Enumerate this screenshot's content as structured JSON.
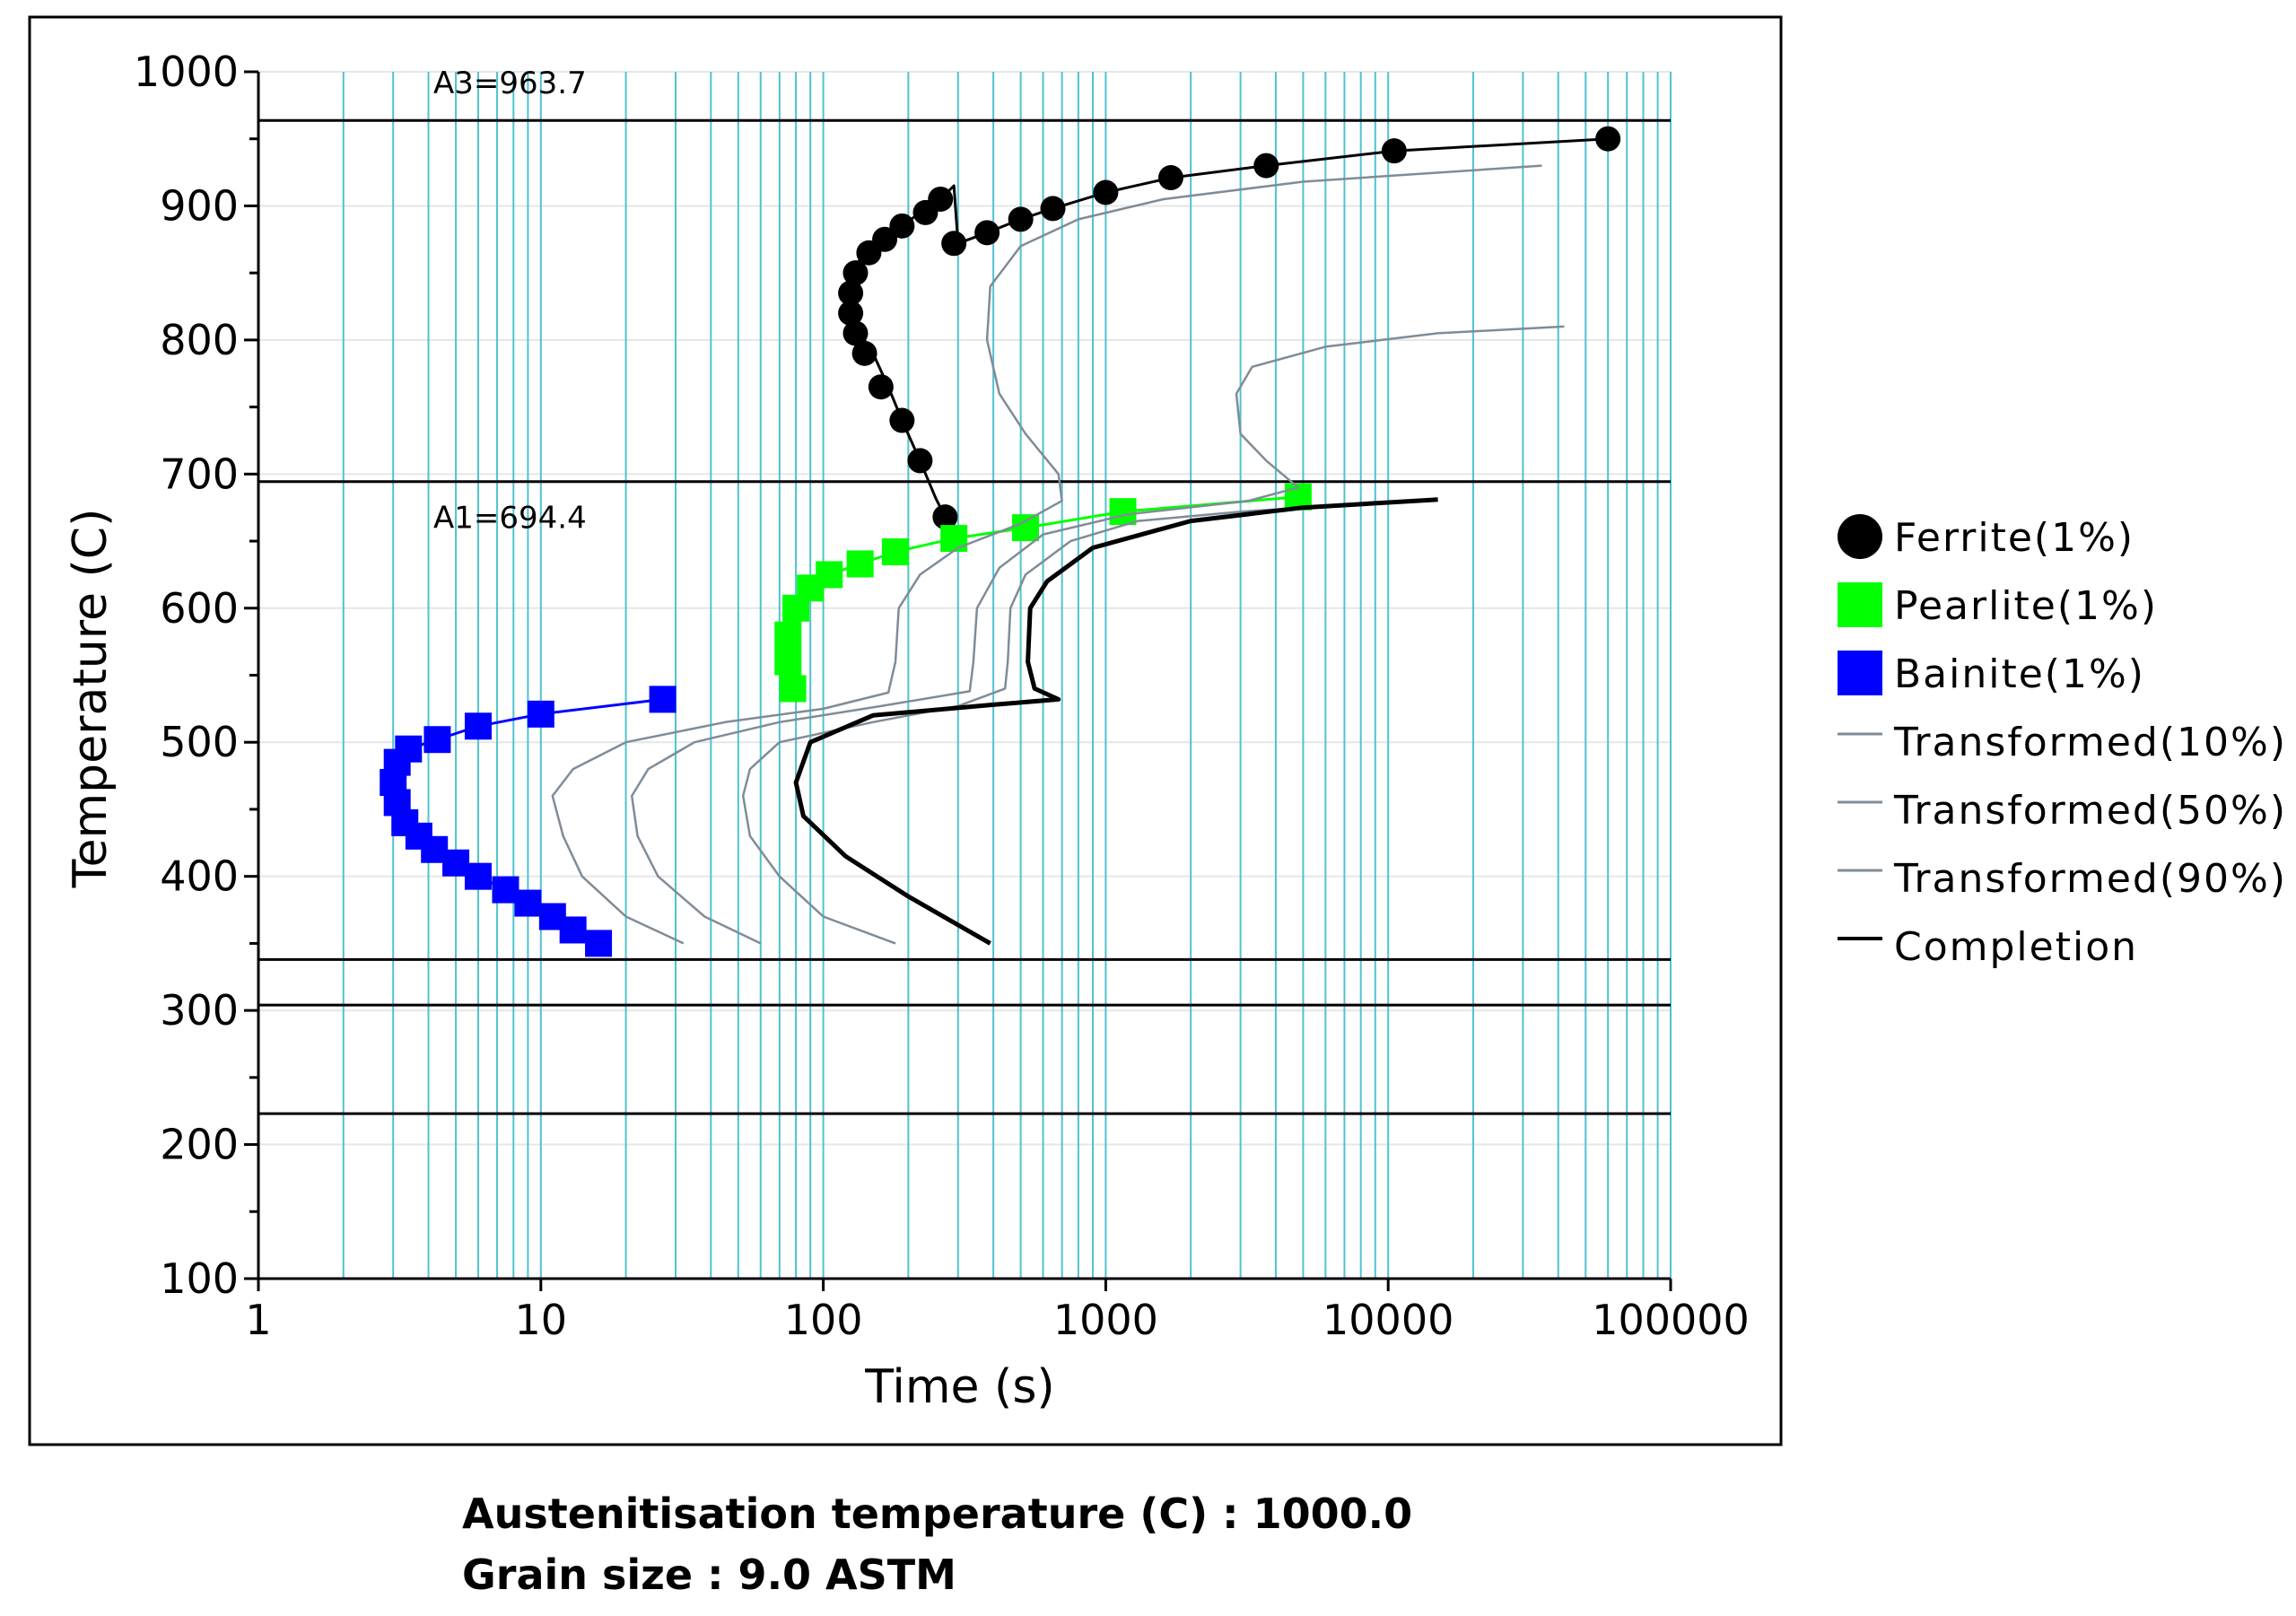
{
  "chart_data": {
    "type": "line",
    "xscale": "log",
    "xlabel": "Time (s)",
    "ylabel": "Temperature (C)",
    "xlim": [
      1,
      100000
    ],
    "ylim": [
      100,
      1000
    ],
    "xticks": [
      1,
      10,
      100,
      1000,
      10000,
      100000
    ],
    "xtick_labels": [
      "1",
      "10",
      "100",
      "1000",
      "10000",
      "100000"
    ],
    "yticks": [
      100,
      200,
      300,
      400,
      500,
      600,
      700,
      800,
      900,
      1000
    ],
    "ytick_labels": [
      "100",
      "200",
      "300",
      "400",
      "500",
      "600",
      "700",
      "800",
      "900",
      "1000"
    ],
    "reference_lines": [
      {
        "y": 963.7,
        "label": "A3=963.7"
      },
      {
        "y": 694.4,
        "label": "A1=694.4"
      },
      {
        "y": 338,
        "label": ""
      },
      {
        "y": 304,
        "label": ""
      },
      {
        "y": 223,
        "label": ""
      }
    ],
    "series": [
      {
        "name": "Ferrite(1%)",
        "marker": "circle",
        "color": "#000000",
        "points": [
          [
            290,
            652
          ],
          [
            270,
            668
          ],
          [
            250,
            682
          ],
          [
            220,
            710
          ],
          [
            190,
            740
          ],
          [
            170,
            765
          ],
          [
            150,
            790
          ],
          [
            135,
            805
          ],
          [
            125,
            820
          ],
          [
            122,
            835
          ],
          [
            125,
            850
          ],
          [
            140,
            865
          ],
          [
            160,
            875
          ],
          [
            190,
            885
          ],
          [
            220,
            895
          ],
          [
            260,
            905
          ],
          [
            290,
            915
          ],
          [
            300,
            872
          ],
          [
            380,
            880
          ],
          [
            500,
            890
          ],
          [
            650,
            898
          ],
          [
            1000,
            910
          ],
          [
            1700,
            921
          ],
          [
            3700,
            930
          ],
          [
            10500,
            941
          ],
          [
            60000,
            950
          ]
        ],
        "markers": [
          [
            290,
            652
          ],
          [
            270,
            668
          ],
          [
            220,
            710
          ],
          [
            190,
            740
          ],
          [
            160,
            765
          ],
          [
            140,
            790
          ],
          [
            130,
            805
          ],
          [
            125,
            820
          ],
          [
            125,
            835
          ],
          [
            130,
            850
          ],
          [
            145,
            865
          ],
          [
            165,
            875
          ],
          [
            190,
            885
          ],
          [
            230,
            895
          ],
          [
            260,
            905
          ],
          [
            290,
            872
          ],
          [
            380,
            880
          ],
          [
            500,
            890
          ],
          [
            650,
            898
          ],
          [
            1000,
            910
          ],
          [
            1700,
            921
          ],
          [
            3700,
            930
          ],
          [
            10500,
            941
          ],
          [
            60000,
            950
          ]
        ]
      },
      {
        "name": "Pearlite(1%)",
        "marker": "square",
        "color": "#00ff00",
        "points": [
          [
            78,
            540
          ],
          [
            75,
            560
          ],
          [
            75,
            580
          ],
          [
            80,
            600
          ],
          [
            90,
            615
          ],
          [
            105,
            625
          ],
          [
            135,
            633
          ],
          [
            180,
            642
          ],
          [
            290,
            652
          ],
          [
            520,
            660
          ],
          [
            1150,
            672
          ],
          [
            4800,
            683
          ]
        ],
        "markers": [
          [
            78,
            540
          ],
          [
            75,
            560
          ],
          [
            75,
            580
          ],
          [
            80,
            600
          ],
          [
            90,
            615
          ],
          [
            105,
            625
          ],
          [
            135,
            633
          ],
          [
            180,
            642
          ],
          [
            290,
            652
          ],
          [
            520,
            660
          ],
          [
            1150,
            672
          ],
          [
            4800,
            683
          ]
        ]
      },
      {
        "name": "Bainite(1%)",
        "marker": "square",
        "color": "#0000ff",
        "points": [
          [
            16,
            350
          ],
          [
            13,
            360
          ],
          [
            11,
            370
          ],
          [
            9,
            380
          ],
          [
            7.5,
            390
          ],
          [
            6,
            400
          ],
          [
            5,
            410
          ],
          [
            4.2,
            420
          ],
          [
            3.7,
            430
          ],
          [
            3.3,
            440
          ],
          [
            3.1,
            455
          ],
          [
            3,
            470
          ],
          [
            3.1,
            485
          ],
          [
            3.4,
            495
          ],
          [
            4.3,
            502
          ],
          [
            6,
            512
          ],
          [
            10,
            521
          ],
          [
            27,
            532
          ]
        ],
        "markers": [
          [
            16,
            350
          ],
          [
            13,
            360
          ],
          [
            11,
            370
          ],
          [
            9,
            380
          ],
          [
            7.5,
            390
          ],
          [
            6,
            400
          ],
          [
            5,
            410
          ],
          [
            4.2,
            420
          ],
          [
            3.7,
            430
          ],
          [
            3.3,
            440
          ],
          [
            3.1,
            455
          ],
          [
            3,
            470
          ],
          [
            3.1,
            485
          ],
          [
            3.4,
            495
          ],
          [
            4.3,
            502
          ],
          [
            6,
            512
          ],
          [
            10,
            521
          ],
          [
            27,
            532
          ]
        ]
      },
      {
        "name": "Transformed(10%)",
        "marker": "none",
        "color": "#7f8c98",
        "points": [
          [
            32,
            350
          ],
          [
            20,
            370
          ],
          [
            14,
            400
          ],
          [
            12,
            430
          ],
          [
            11,
            460
          ],
          [
            13,
            480
          ],
          [
            20,
            500
          ],
          [
            45,
            515
          ],
          [
            100,
            525
          ],
          [
            170,
            537
          ],
          [
            180,
            560
          ],
          [
            185,
            600
          ],
          [
            220,
            625
          ],
          [
            300,
            645
          ],
          [
            500,
            663
          ],
          [
            700,
            680
          ],
          [
            680,
            700
          ],
          [
            520,
            730
          ],
          [
            420,
            760
          ],
          [
            380,
            800
          ],
          [
            390,
            840
          ],
          [
            500,
            870
          ],
          [
            800,
            890
          ],
          [
            1600,
            905
          ],
          [
            5000,
            918
          ],
          [
            35000,
            930
          ]
        ]
      },
      {
        "name": "Transformed(50%)",
        "marker": "none",
        "color": "#7f8c98",
        "points": [
          [
            60,
            350
          ],
          [
            38,
            370
          ],
          [
            26,
            400
          ],
          [
            22,
            430
          ],
          [
            21,
            460
          ],
          [
            24,
            480
          ],
          [
            35,
            500
          ],
          [
            70,
            515
          ],
          [
            160,
            527
          ],
          [
            330,
            538
          ],
          [
            340,
            560
          ],
          [
            350,
            600
          ],
          [
            420,
            630
          ],
          [
            600,
            655
          ],
          [
            1200,
            670
          ],
          [
            3200,
            680
          ],
          [
            4800,
            690
          ],
          [
            3700,
            710
          ],
          [
            3000,
            730
          ],
          [
            2900,
            760
          ],
          [
            3300,
            780
          ],
          [
            6000,
            795
          ],
          [
            15000,
            805
          ],
          [
            42000,
            810
          ]
        ]
      },
      {
        "name": "Transformed(90%)",
        "marker": "none",
        "color": "#7f8c98",
        "points": [
          [
            180,
            350
          ],
          [
            100,
            370
          ],
          [
            70,
            400
          ],
          [
            55,
            430
          ],
          [
            52,
            460
          ],
          [
            55,
            480
          ],
          [
            70,
            500
          ],
          [
            150,
            515
          ],
          [
            300,
            527
          ],
          [
            440,
            540
          ],
          [
            450,
            560
          ],
          [
            460,
            600
          ],
          [
            520,
            625
          ],
          [
            750,
            650
          ],
          [
            1300,
            665
          ],
          [
            3000,
            672
          ],
          [
            6000,
            676
          ]
        ]
      },
      {
        "name": "Completion",
        "marker": "none",
        "color": "#000000",
        "points": [
          [
            390,
            350
          ],
          [
            200,
            385
          ],
          [
            120,
            415
          ],
          [
            85,
            445
          ],
          [
            80,
            470
          ],
          [
            90,
            500
          ],
          [
            150,
            520
          ],
          [
            400,
            528
          ],
          [
            680,
            532
          ],
          [
            560,
            540
          ],
          [
            530,
            560
          ],
          [
            540,
            600
          ],
          [
            620,
            620
          ],
          [
            900,
            645
          ],
          [
            2000,
            665
          ],
          [
            5000,
            675
          ],
          [
            15000,
            681
          ]
        ]
      }
    ],
    "legend": [
      "Ferrite(1%)",
      "Pearlite(1%)",
      "Bainite(1%)",
      "Transformed(10%)",
      "Transformed(50%)",
      "Transformed(90%)",
      "Completion"
    ],
    "legend_position": "right",
    "grid": {
      "x": true,
      "y": true
    }
  },
  "info": {
    "austenitisation": "Austenitisation temperature (C) : 1000.0",
    "grain_size": "Grain size : 9.0 ASTM"
  },
  "colors": {
    "grid_x": "#4fc3cf",
    "grid_y": "#e6e6e6",
    "transformed": "#7f8c98"
  }
}
